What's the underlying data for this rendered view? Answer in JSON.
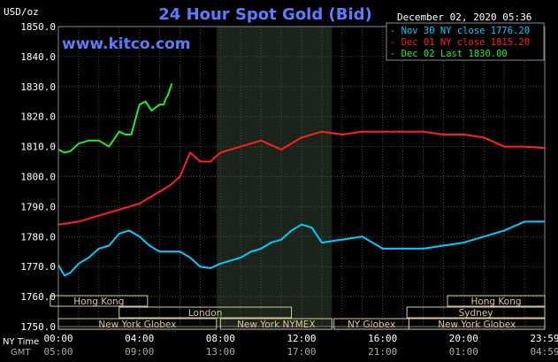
{
  "chart_data": {
    "type": "line",
    "title": "24 Hour Spot Gold (Bid)",
    "source": "www.kitco.com",
    "date": "December 02, 2020 05:36",
    "ylabel": "USD/oz",
    "ylim": [
      1750,
      1850
    ],
    "y_ticks": [
      "1850.0",
      "1840.0",
      "1830.0",
      "1820.0",
      "1810.0",
      "1800.0",
      "1790.0",
      "1780.0",
      "1770.0",
      "1760.0",
      "1750.0"
    ],
    "x_row_labels": [
      "NY Time",
      "GMT"
    ],
    "x_ticks_ny": [
      "00:00",
      "04:00",
      "08:00",
      "12:00",
      "16:00",
      "20:00",
      "23:59"
    ],
    "x_ticks_gmt": [
      "05:00",
      "09:00",
      "13:00",
      "17:00",
      "21:00",
      "01:00",
      "04:59"
    ],
    "grid": true,
    "legend_position": "top-right",
    "series": [
      {
        "name": "Nov 30 NY close 1776.20",
        "color": "#00ccff",
        "x": [
          0,
          0.3,
          0.6,
          1,
          1.5,
          2,
          2.5,
          3,
          3.5,
          4,
          4.5,
          5,
          5.5,
          6,
          6.5,
          7,
          7.5,
          8,
          8.5,
          9,
          9.5,
          10,
          10.5,
          11,
          11.5,
          12,
          12.5,
          13,
          13.5,
          14,
          15,
          16,
          17,
          18,
          19,
          20,
          21,
          22,
          23,
          23.99
        ],
        "y": [
          1770.5,
          1767,
          1768,
          1771,
          1773,
          1776,
          1777,
          1781,
          1782,
          1780,
          1777,
          1775,
          1775,
          1775,
          1773,
          1770,
          1769.5,
          1771,
          1772,
          1773,
          1775,
          1776,
          1778,
          1779,
          1782,
          1784,
          1783,
          1778,
          1778.5,
          1779,
          1780,
          1776,
          1776,
          1776,
          1777,
          1778,
          1780,
          1782,
          1785,
          1785
        ]
      },
      {
        "name": "Dec 01 NY close 1815.20",
        "color": "#ff2020",
        "x": [
          0,
          1,
          2,
          3,
          4,
          5,
          5.5,
          6,
          6.5,
          7,
          7.5,
          8,
          9,
          10,
          11,
          12,
          13,
          14,
          15,
          16,
          17,
          18,
          19,
          20,
          21,
          22,
          23,
          23.99
        ],
        "y": [
          1784,
          1785,
          1787,
          1789,
          1791,
          1795,
          1797,
          1800,
          1808,
          1805,
          1805,
          1808,
          1810,
          1812,
          1809,
          1813,
          1815,
          1814,
          1815,
          1815,
          1815,
          1815,
          1814,
          1814,
          1813,
          1810,
          1810,
          1809.5
        ]
      },
      {
        "name": "Dec 02 Last 1830.00",
        "color": "#22ee22",
        "x": [
          0,
          0.3,
          0.6,
          1,
          1.5,
          2,
          2.5,
          3,
          3.3,
          3.6,
          4,
          4.3,
          4.6,
          5,
          5.2,
          5.3,
          5.4,
          5.5,
          5.6
        ],
        "y": [
          1809,
          1808,
          1808.5,
          1811,
          1812,
          1812,
          1810,
          1815,
          1814,
          1814,
          1824,
          1825,
          1822,
          1824,
          1824,
          1826,
          1827,
          1829,
          1831
        ]
      }
    ],
    "sessions": [
      {
        "label": "Hong Kong",
        "row": 1,
        "start": -0.4,
        "end": 4.4
      },
      {
        "label": "Hong Kong",
        "row": 1,
        "start": 19.2,
        "end": 24
      },
      {
        "label": "London",
        "row": 2,
        "start": 3,
        "end": 11.5
      },
      {
        "label": "Sydney",
        "row": 2,
        "start": 17.2,
        "end": 24
      },
      {
        "label": "New York Globex",
        "row": 3,
        "start": 0,
        "end": 7.8
      },
      {
        "label": "New York NYMEX",
        "row": 3,
        "start": 8,
        "end": 13.5
      },
      {
        "label": "NY Globex",
        "row": 3,
        "start": 13.6,
        "end": 17.3
      },
      {
        "label": "New York Globex",
        "row": 3,
        "start": 17.3,
        "end": 24
      }
    ],
    "highlight_band": {
      "start": 7.8,
      "end": 13.5
    }
  }
}
